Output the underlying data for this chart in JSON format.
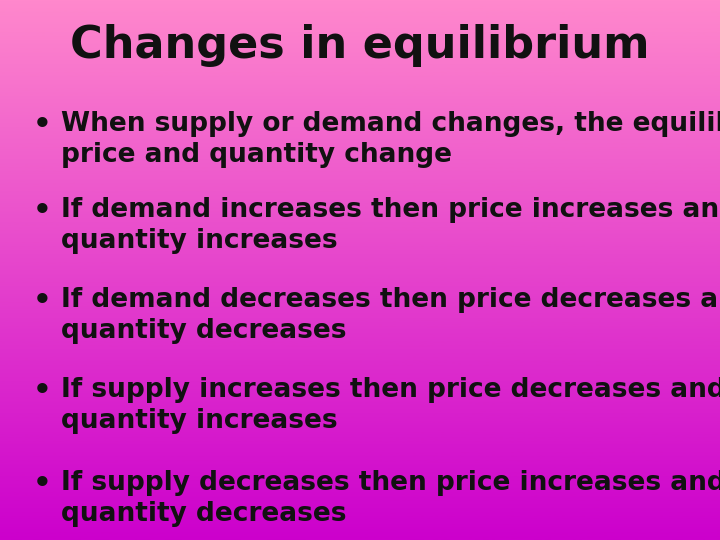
{
  "title": "Changes in equilibrium",
  "title_fontsize": 32,
  "title_fontweight": "bold",
  "title_color": "#111111",
  "bullet_points": [
    "When supply or demand changes, the equilibrium\nprice and quantity change",
    "If demand increases then price increases and\nquantity increases",
    "If demand decreases then price decreases and\nquantity decreases",
    "If supply increases then price decreases and\nquantity increases",
    "If supply decreases then price increases and\nquantity decreases"
  ],
  "bullet_fontsize": 19,
  "bullet_fontweight": "bold",
  "bullet_color": "#111111",
  "bg_color_top": "#ff88cc",
  "bg_color_bottom": "#cc00cc",
  "figsize": [
    7.2,
    5.4
  ],
  "dpi": 100
}
